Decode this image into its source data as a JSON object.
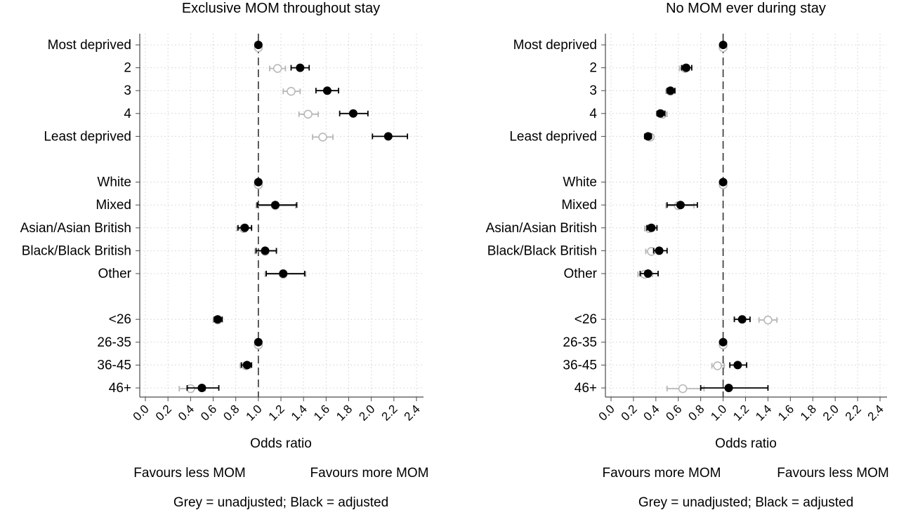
{
  "colors": {
    "adjusted": "#000000",
    "unadjusted": "#b8b8b8",
    "grid": "#dcdcdc",
    "axis": "#4a4a4a",
    "refline": "#333333"
  },
  "chart_data": [
    {
      "type": "scatter",
      "title": "Exclusive MOM throughout stay",
      "xlabel": "Odds ratio",
      "xlim": [
        0,
        2.4
      ],
      "xticks": [
        "0.0",
        "0.2",
        "0.4",
        "0.6",
        "0.8",
        "1.0",
        "1.2",
        "1.4",
        "1.6",
        "1.8",
        "2.0",
        "2.2",
        "2.4"
      ],
      "reference_line": 1.0,
      "left_note": "Favours less MOM",
      "right_note": "Favours more MOM",
      "footer": "Grey = unadjusted; Black = adjusted",
      "grid": true,
      "rows": [
        {
          "label": "Most deprived",
          "slot": 0,
          "adj": [
            1.0,
            1.0,
            1.0
          ],
          "unadj": [
            1.0,
            1.0,
            1.0
          ]
        },
        {
          "label": "2",
          "slot": 1,
          "adj": [
            1.37,
            1.29,
            1.45
          ],
          "unadj": [
            1.17,
            1.1,
            1.24
          ]
        },
        {
          "label": "3",
          "slot": 2,
          "adj": [
            1.61,
            1.51,
            1.71
          ],
          "unadj": [
            1.29,
            1.22,
            1.37
          ]
        },
        {
          "label": "4",
          "slot": 3,
          "adj": [
            1.84,
            1.72,
            1.97
          ],
          "unadj": [
            1.44,
            1.36,
            1.53
          ]
        },
        {
          "label": "Least deprived",
          "slot": 4,
          "adj": [
            2.15,
            2.01,
            2.32
          ],
          "unadj": [
            1.57,
            1.48,
            1.66
          ]
        },
        {
          "label": "White",
          "slot": 6,
          "adj": [
            1.0,
            1.0,
            1.0
          ],
          "unadj": [
            1.0,
            1.0,
            1.0
          ]
        },
        {
          "label": "Mixed",
          "slot": 7,
          "adj": [
            1.15,
            0.99,
            1.34
          ],
          "unadj": [
            1.15,
            0.98,
            1.33
          ]
        },
        {
          "label": "Asian/Asian British",
          "slot": 8,
          "adj": [
            0.88,
            0.82,
            0.94
          ],
          "unadj": [
            0.87,
            0.81,
            0.94
          ]
        },
        {
          "label": "Black/Black British",
          "slot": 9,
          "adj": [
            1.06,
            0.98,
            1.16
          ],
          "unadj": [
            1.06,
            0.97,
            1.16
          ]
        },
        {
          "label": "Other",
          "slot": 10,
          "adj": [
            1.22,
            1.07,
            1.41
          ],
          "unadj": [
            1.22,
            1.06,
            1.42
          ]
        },
        {
          "label": "<26",
          "slot": 12,
          "adj": [
            0.64,
            0.61,
            0.68
          ],
          "unadj": [
            0.64,
            0.6,
            0.68
          ]
        },
        {
          "label": "26-35",
          "slot": 13,
          "adj": [
            1.0,
            1.0,
            1.0
          ],
          "unadj": [
            1.0,
            1.0,
            1.0
          ]
        },
        {
          "label": "36-45",
          "slot": 14,
          "adj": [
            0.9,
            0.85,
            0.94
          ],
          "unadj": [
            0.89,
            0.84,
            0.93
          ]
        },
        {
          "label": "46+",
          "slot": 15,
          "adj": [
            0.5,
            0.37,
            0.65
          ],
          "unadj": [
            0.4,
            0.3,
            0.53
          ]
        }
      ]
    },
    {
      "type": "scatter",
      "title": "No MOM ever during stay",
      "xlabel": "Odds ratio",
      "xlim": [
        0,
        2.4
      ],
      "xticks": [
        "0.0",
        "0.2",
        "0.4",
        "0.6",
        "0.8",
        "1.0",
        "1.2",
        "1.4",
        "1.6",
        "1.8",
        "2.0",
        "2.2",
        "2.4"
      ],
      "reference_line": 1.0,
      "left_note": "Favours more MOM",
      "right_note": "Favours less MOM",
      "footer": "Grey = unadjusted; Black = adjusted",
      "grid": true,
      "rows": [
        {
          "label": "Most deprived",
          "slot": 0,
          "adj": [
            1.0,
            1.0,
            1.0
          ],
          "unadj": [
            1.0,
            1.0,
            1.0
          ]
        },
        {
          "label": "2",
          "slot": 1,
          "adj": [
            0.67,
            0.63,
            0.72
          ],
          "unadj": [
            0.66,
            0.61,
            0.7
          ]
        },
        {
          "label": "3",
          "slot": 2,
          "adj": [
            0.53,
            0.5,
            0.57
          ],
          "unadj": [
            0.53,
            0.49,
            0.57
          ]
        },
        {
          "label": "4",
          "slot": 3,
          "adj": [
            0.44,
            0.41,
            0.48
          ],
          "unadj": [
            0.46,
            0.42,
            0.5
          ]
        },
        {
          "label": "Least deprived",
          "slot": 4,
          "adj": [
            0.33,
            0.3,
            0.36
          ],
          "unadj": [
            0.35,
            0.32,
            0.38
          ]
        },
        {
          "label": "White",
          "slot": 6,
          "adj": [
            1.0,
            1.0,
            1.0
          ],
          "unadj": [
            1.0,
            1.0,
            1.0
          ]
        },
        {
          "label": "Mixed",
          "slot": 7,
          "adj": [
            0.62,
            0.5,
            0.77
          ],
          "unadj": [
            0.6,
            0.49,
            0.74
          ]
        },
        {
          "label": "Asian/Asian British",
          "slot": 8,
          "adj": [
            0.36,
            0.32,
            0.41
          ],
          "unadj": [
            0.34,
            0.3,
            0.38
          ]
        },
        {
          "label": "Black/Black British",
          "slot": 9,
          "adj": [
            0.43,
            0.38,
            0.5
          ],
          "unadj": [
            0.36,
            0.31,
            0.41
          ]
        },
        {
          "label": "Other",
          "slot": 10,
          "adj": [
            0.33,
            0.26,
            0.42
          ],
          "unadj": [
            0.3,
            0.24,
            0.37
          ]
        },
        {
          "label": "<26",
          "slot": 12,
          "adj": [
            1.17,
            1.1,
            1.24
          ],
          "unadj": [
            1.4,
            1.32,
            1.48
          ]
        },
        {
          "label": "26-35",
          "slot": 13,
          "adj": [
            1.0,
            1.0,
            1.0
          ],
          "unadj": [
            1.0,
            1.0,
            1.0
          ]
        },
        {
          "label": "36-45",
          "slot": 14,
          "adj": [
            1.13,
            1.06,
            1.21
          ],
          "unadj": [
            0.95,
            0.9,
            1.01
          ]
        },
        {
          "label": "46+",
          "slot": 15,
          "adj": [
            1.05,
            0.8,
            1.4
          ],
          "unadj": [
            0.64,
            0.5,
            0.83
          ]
        }
      ]
    }
  ]
}
